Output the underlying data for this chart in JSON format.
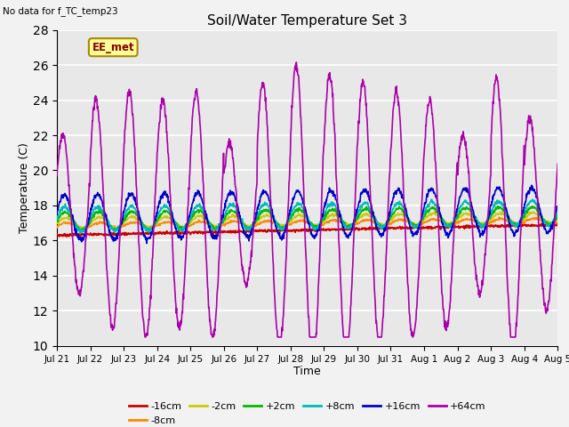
{
  "title": "Soil/Water Temperature Set 3",
  "xlabel": "Time",
  "ylabel": "Temperature (C)",
  "top_left_text": "No data for f_TC_temp23",
  "annotation_text": "EE_met",
  "ylim": [
    10,
    28
  ],
  "yticks": [
    10,
    12,
    14,
    16,
    18,
    20,
    22,
    24,
    26,
    28
  ],
  "fig_facecolor": "#f2f2f2",
  "plot_facecolor": "#e8e8e8",
  "grid_color": "#ffffff",
  "series": {
    "-16cm": {
      "color": "#cc0000",
      "lw": 1.2
    },
    "-8cm": {
      "color": "#ff8800",
      "lw": 1.2
    },
    "-2cm": {
      "color": "#cccc00",
      "lw": 1.2
    },
    "+2cm": {
      "color": "#00bb00",
      "lw": 1.2
    },
    "+8cm": {
      "color": "#00bbbb",
      "lw": 1.2
    },
    "+16cm": {
      "color": "#0000cc",
      "lw": 1.2
    },
    "+64cm": {
      "color": "#aa00aa",
      "lw": 1.2
    }
  },
  "x_tick_labels": [
    "Jul 21",
    "Jul 22",
    "Jul 23",
    "Jul 24",
    "Jul 25",
    "Jul 26",
    "Jul 27",
    "Jul 28",
    "Jul 29",
    "Jul 30",
    "Jul 31",
    "Aug 1",
    "Aug 2",
    "Aug 3",
    "Aug 4",
    "Aug 5"
  ],
  "figsize": [
    6.4,
    4.8
  ],
  "dpi": 100
}
